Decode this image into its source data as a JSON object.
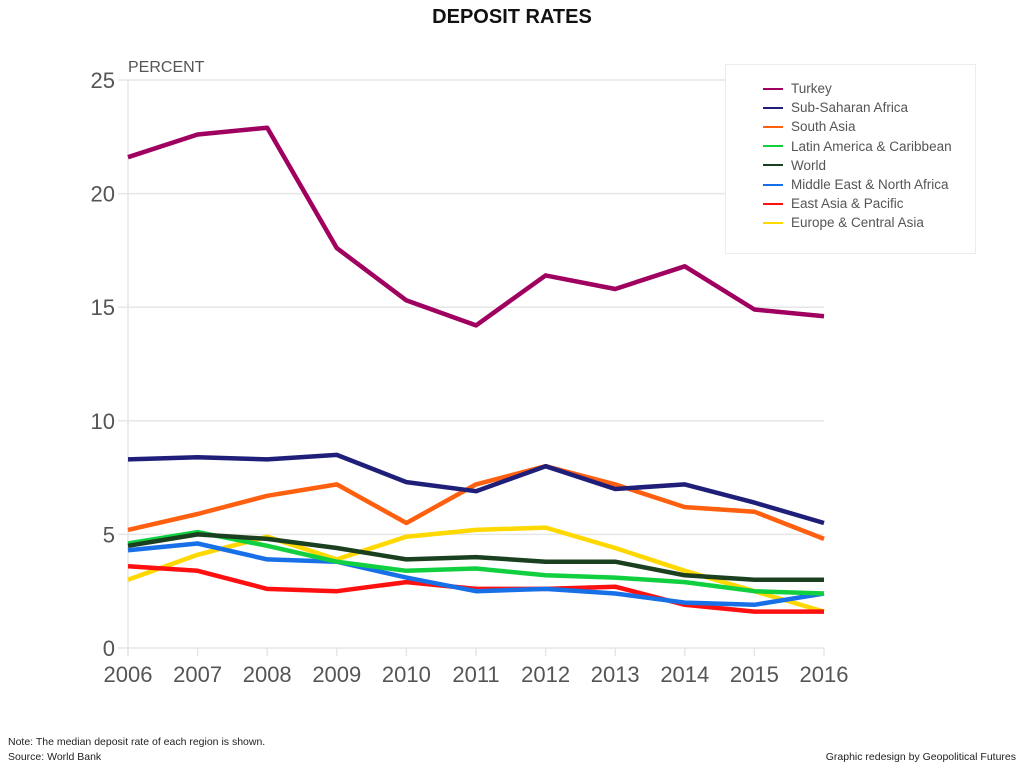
{
  "chart_data": {
    "type": "line",
    "title": "DEPOSIT RATES",
    "ylabel": "PERCENT",
    "xlabel": "",
    "x": [
      2006,
      2007,
      2008,
      2009,
      2010,
      2011,
      2012,
      2013,
      2014,
      2015,
      2016
    ],
    "ylim": [
      0,
      25
    ],
    "yticks": [
      0,
      5,
      10,
      15,
      20,
      25
    ],
    "grid": true,
    "legend_position": "top-right",
    "series": [
      {
        "name": "Turkey",
        "color": "#a0005f",
        "values": [
          21.6,
          22.6,
          22.9,
          17.6,
          15.3,
          14.2,
          16.4,
          15.8,
          16.8,
          14.9,
          14.6
        ]
      },
      {
        "name": "Sub-Saharan Africa",
        "color": "#1f1f7a",
        "values": [
          8.3,
          8.4,
          8.3,
          8.5,
          7.3,
          6.9,
          8.0,
          7.0,
          7.2,
          6.4,
          5.5
        ]
      },
      {
        "name": "South Asia",
        "color": "#ff6010",
        "values": [
          5.2,
          5.9,
          6.7,
          7.2,
          5.5,
          7.2,
          8.0,
          7.2,
          6.2,
          6.0,
          4.8
        ]
      },
      {
        "name": "Latin America & Caribbean",
        "color": "#10d040",
        "values": [
          4.6,
          5.1,
          4.5,
          3.8,
          3.4,
          3.5,
          3.2,
          3.1,
          2.9,
          2.5,
          2.4
        ]
      },
      {
        "name": "World",
        "color": "#1a4020",
        "values": [
          4.5,
          5.0,
          4.8,
          4.4,
          3.9,
          4.0,
          3.8,
          3.8,
          3.2,
          3.0,
          3.0
        ]
      },
      {
        "name": "Middle East & North Africa",
        "color": "#1870e8",
        "values": [
          4.3,
          4.6,
          3.9,
          3.8,
          3.1,
          2.5,
          2.6,
          2.4,
          2.0,
          1.9,
          2.4
        ]
      },
      {
        "name": "East Asia & Pacific",
        "color": "#ff1010",
        "values": [
          3.6,
          3.4,
          2.6,
          2.5,
          2.9,
          2.6,
          2.6,
          2.7,
          1.9,
          1.6,
          1.6
        ]
      },
      {
        "name": "Europe & Central Asia",
        "color": "#ffd800",
        "values": [
          3.0,
          4.1,
          4.9,
          3.9,
          4.9,
          5.2,
          5.3,
          4.4,
          3.4,
          2.5,
          1.6
        ]
      }
    ],
    "draw_order": [
      "Europe & Central Asia",
      "East Asia & Pacific",
      "Middle East & North Africa",
      "Latin America & Caribbean",
      "World",
      "South Asia",
      "Sub-Saharan Africa",
      "Turkey"
    ]
  },
  "footer": {
    "note": "Note: The median deposit rate of each region is shown.",
    "source": "Source: World Bank",
    "credit": "Graphic redesign by Geopolitical Futures"
  }
}
